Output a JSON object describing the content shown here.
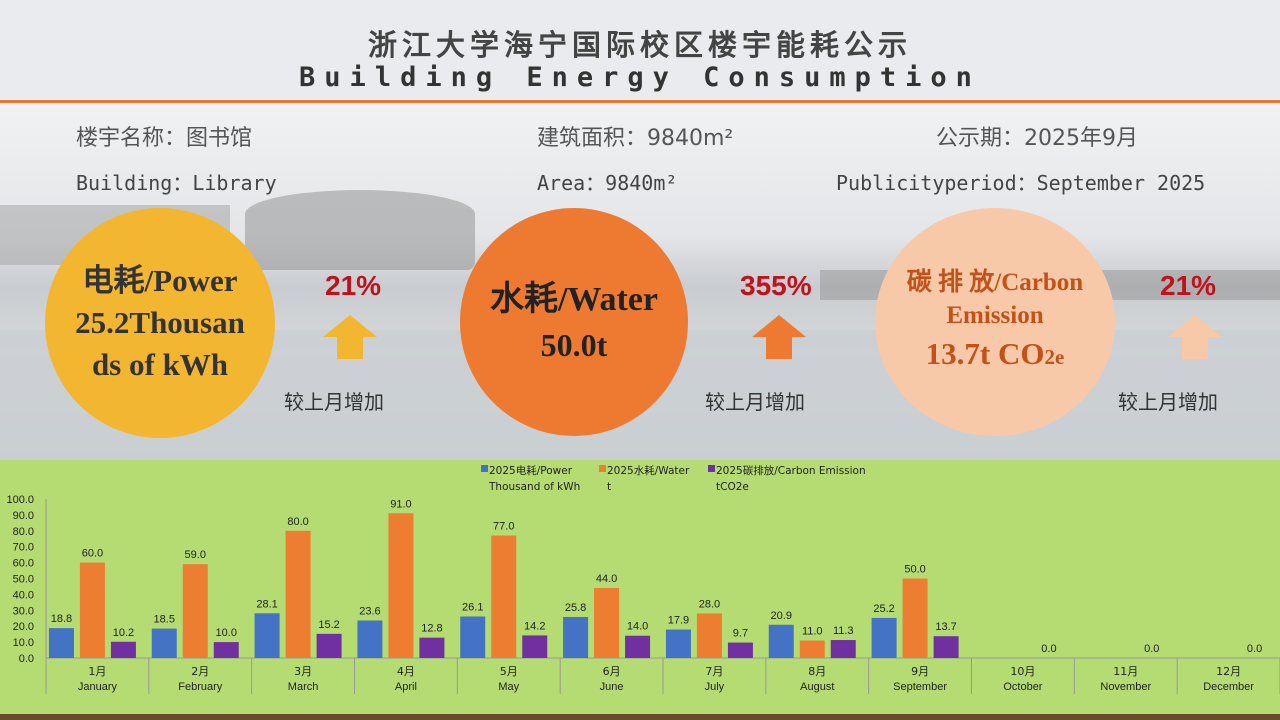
{
  "header": {
    "title_cn": "浙江大学海宁国际校区楼宇能耗公示",
    "title_en": "Building Energy Consumption"
  },
  "info": {
    "building_cn": "楼宇名称：图书馆",
    "area_cn": "建筑面积：9840m²",
    "period_cn": "公示期：2025年9月",
    "building_en": "Building：Library",
    "area_en": "Area：9840m²",
    "period_en": "Publicityperiod：September 2025"
  },
  "cards": {
    "power": {
      "line1": "电耗/Power",
      "line2": "25.2Thousan",
      "line3": "ds of kWh",
      "change": "21%",
      "compare": "较上月增加",
      "color": "#f2b631"
    },
    "water": {
      "line1": "水耗/Water",
      "line2": "50.0t",
      "change": "355%",
      "compare": "较上月增加",
      "color": "#ee7a31"
    },
    "carbon": {
      "line1": "碳 排 放/Carbon",
      "line2": "Emission",
      "line3": "13.7t CO",
      "line3_sub": "2e",
      "change": "21%",
      "compare": "较上月增加",
      "color": "#f8c9a9"
    }
  },
  "chart_data": {
    "type": "bar",
    "categories_cn": [
      "1月",
      "2月",
      "3月",
      "4月",
      "5月",
      "6月",
      "7月",
      "8月",
      "9月",
      "10月",
      "11月",
      "12月"
    ],
    "categories": [
      "January",
      "February",
      "March",
      "April",
      "May",
      "June",
      "July",
      "August",
      "September",
      "October",
      "November",
      "December"
    ],
    "series": [
      {
        "name": "2025电耗/Power Thousand of kWh",
        "name_line1": "2025电耗/Power",
        "name_line2": "Thousand of kWh",
        "color": "#4472c4",
        "values": [
          18.8,
          18.5,
          28.1,
          23.6,
          26.1,
          25.8,
          17.9,
          20.9,
          25.2,
          null,
          null,
          null
        ],
        "labels": [
          "18.8",
          "18.5",
          "28.1",
          "23.6",
          "26.1",
          "25.8",
          "17.9",
          "20.9",
          "25.2",
          "",
          "",
          ""
        ]
      },
      {
        "name": "2025水耗/Water t",
        "name_line1": "2025水耗/Water",
        "name_line2": "t",
        "color": "#ed7d31",
        "values": [
          60.0,
          59.0,
          80.0,
          91.0,
          77.0,
          44.0,
          28.0,
          11.0,
          50.0,
          null,
          null,
          null
        ],
        "labels": [
          "60.0",
          "59.0",
          "80.0",
          "91.0",
          "77.0",
          "44.0",
          "28.0",
          "11.0",
          "50.0",
          "",
          "",
          ""
        ]
      },
      {
        "name": "2025碳排放/Carbon Emission tCO2e",
        "name_line1": "2025碳排放/Carbon Emission",
        "name_line2": "tCO2e",
        "color": "#7030a0",
        "values": [
          10.2,
          10.0,
          15.2,
          12.8,
          14.2,
          14.0,
          9.7,
          11.3,
          13.7,
          0.0,
          0.0,
          0.0
        ],
        "labels": [
          "10.2",
          "10.0",
          "15.2",
          "12.8",
          "14.2",
          "14.0",
          "9.7",
          "11.3",
          "13.7",
          "0.0",
          "0.0",
          "0.0"
        ]
      }
    ],
    "yticks": [
      "0.0",
      "10.0",
      "20.0",
      "30.0",
      "40.0",
      "50.0",
      "60.0",
      "70.0",
      "80.0",
      "90.0",
      "100.0"
    ],
    "ylim": [
      0,
      100
    ],
    "legend": "top-center",
    "grid": false
  }
}
